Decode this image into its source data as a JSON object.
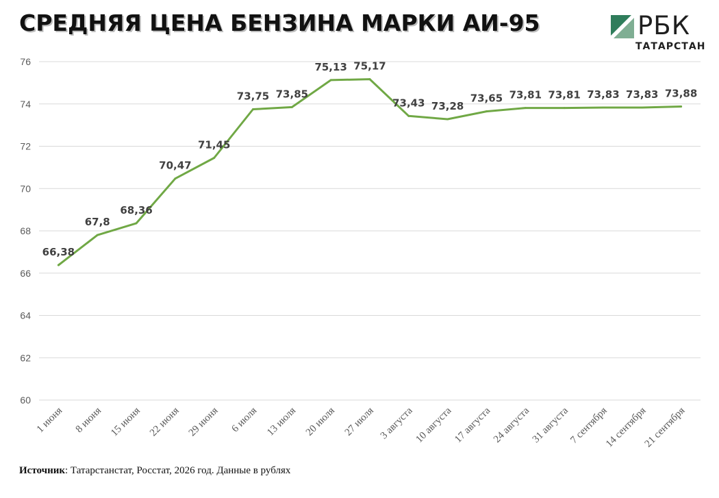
{
  "header": {
    "title": "СРЕДНЯЯ ЦЕНА БЕНЗИНА МАРКИ АИ-95"
  },
  "logo": {
    "word": "РБК",
    "region": "ТАТАРСТАН",
    "mark_color": "#2f7d5b"
  },
  "footer": {
    "source_label": "Источник",
    "source_text": ": Татарстанстат, Росстат, 2026 год. Данные в рублях"
  },
  "chart_data": {
    "type": "line",
    "title": "СРЕДНЯЯ ЦЕНА БЕНЗИНА МАРКИ АИ-95",
    "xlabel": "",
    "ylabel": "",
    "categories": [
      "1 июня",
      "8 июня",
      "15 июня",
      "22 июня",
      "29 июня",
      "6 июля",
      "13 июля",
      "20 июля",
      "27 июля",
      "3 августа",
      "10 августа",
      "17 августа",
      "24 августа",
      "31 августа",
      "7 сентября",
      "14 сентября",
      "21 сентября"
    ],
    "series": [
      {
        "values": [
          66.38,
          67.8,
          68.36,
          70.47,
          71.45,
          73.75,
          73.85,
          75.13,
          75.17,
          73.43,
          73.28,
          73.65,
          73.81,
          73.81,
          73.83,
          73.83,
          73.88
        ],
        "labels": [
          "66,38",
          "67,8",
          "68,36",
          "70,47",
          "71,45",
          "73,75",
          "73,85",
          "75,13",
          "75,17",
          "73,43",
          "73,28",
          "73,65",
          "73,81",
          "73,81",
          "73,83",
          "73,83",
          "73,88"
        ],
        "color": "#70a845"
      }
    ],
    "ylim": [
      60,
      76
    ],
    "yticks": [
      60,
      62,
      64,
      66,
      68,
      70,
      72,
      74,
      76
    ],
    "grid": true,
    "legend": "none"
  }
}
